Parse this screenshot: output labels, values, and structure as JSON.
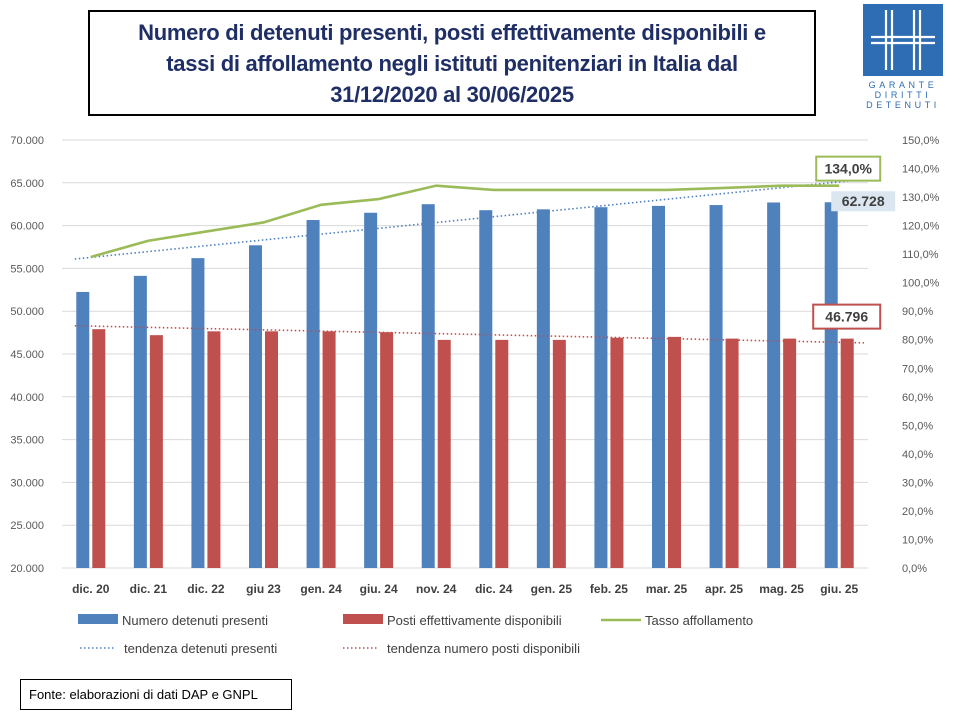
{
  "title": "Numero di detenuti presenti, posti effettivamente disponibili e tassi di affollamento negli istituti penitenziari in Italia dal 31/12/2020 al 30/06/2025",
  "title_lines": [
    "Numero di detenuti presenti, posti effettivamente disponibili e",
    "tassi di affollamento negli istituti penitenziari in Italia dal",
    "31/12/2020 al 30/06/2025"
  ],
  "logo": {
    "line1": "GARANTE",
    "line2": "DIRITTI",
    "line3": "DETENUTI",
    "icon": "logo-mark"
  },
  "source": "Fonte: elaborazioni di dati DAP e GNPL",
  "chart_data": {
    "type": "bar",
    "categories": [
      "dic. 20",
      "dic. 21",
      "dic. 22",
      "giu 23",
      "gen. 24",
      "giu. 24",
      "nov. 24",
      "dic. 24",
      "gen. 25",
      "feb. 25",
      "mar. 25",
      "apr. 25",
      "mag. 25",
      "giu. 25"
    ],
    "series": [
      {
        "name": "Numero detenuti presenti",
        "kind": "bar",
        "axis": "left",
        "color": "#4f81bd",
        "values": [
          52250,
          54130,
          56200,
          57700,
          60650,
          61500,
          62500,
          61800,
          61900,
          62150,
          62300,
          62400,
          62700,
          62728
        ]
      },
      {
        "name": "Posti effettivamente disponibili",
        "kind": "bar",
        "axis": "left",
        "color": "#c0504d",
        "values": [
          47900,
          47200,
          47650,
          47650,
          47650,
          47550,
          46650,
          46650,
          46650,
          46900,
          47000,
          46800,
          46800,
          46796
        ]
      },
      {
        "name": "Tasso affollamento",
        "kind": "line",
        "axis": "right",
        "color": "#9bbb59",
        "values": [
          109.0,
          114.7,
          117.9,
          121.1,
          127.3,
          129.3,
          134.0,
          132.5,
          132.5,
          132.5,
          132.5,
          133.2,
          134.0,
          134.0
        ]
      },
      {
        "name": "tendenza detenuti presenti",
        "kind": "trend",
        "axis": "left",
        "color": "#4f81bd",
        "start": 56100,
        "end": 65400
      },
      {
        "name": "tendenza numero posti disponibili",
        "kind": "trend",
        "axis": "left",
        "color": "#c0504d",
        "start": 48300,
        "end": 46300
      }
    ],
    "y_left": {
      "min": 20000,
      "max": 70000,
      "step": 5000,
      "ticks": [
        "20.000",
        "25.000",
        "30.000",
        "35.000",
        "40.000",
        "45.000",
        "50.000",
        "55.000",
        "60.000",
        "65.000",
        "70.000"
      ]
    },
    "y_right": {
      "min": 0,
      "max": 150,
      "step": 10,
      "ticks": [
        "0,0%",
        "10,0%",
        "20,0%",
        "30,0%",
        "40,0%",
        "50,0%",
        "60,0%",
        "70,0%",
        "80,0%",
        "90,0%",
        "100,0%",
        "110,0%",
        "120,0%",
        "130,0%",
        "140,0%",
        "150,0%"
      ]
    },
    "annotations": [
      {
        "text": "134,0%",
        "series": "Tasso affollamento",
        "border": "#9bbb59",
        "fill": "#ffffff"
      },
      {
        "text": "62.728",
        "series": "Numero detenuti presenti",
        "border": "none",
        "fill": "#dce6f1"
      },
      {
        "text": "46.796",
        "series": "Posti effettivamente disponibili",
        "border": "#c0504d",
        "fill": "#ffffff"
      }
    ],
    "grid": true,
    "legend": "bottom"
  }
}
